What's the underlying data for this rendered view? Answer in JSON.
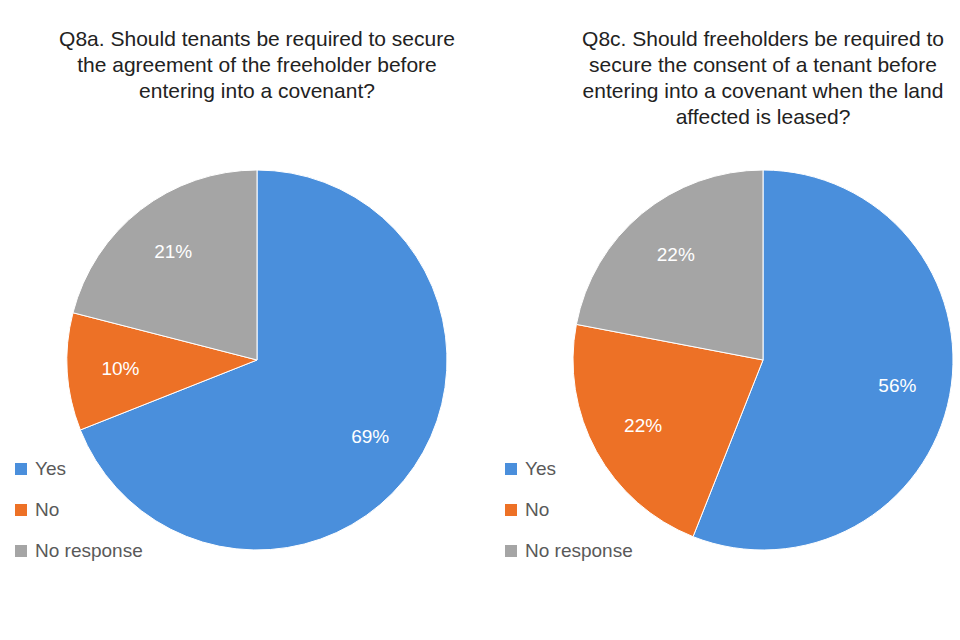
{
  "chart_data": [
    {
      "type": "pie",
      "title": "Q8a. Should tenants be required to secure the agreement of the freeholder before entering into a covenant?",
      "categories": [
        "Yes",
        "No",
        "No response"
      ],
      "values": [
        69,
        10,
        21
      ],
      "value_labels": [
        "69%",
        "10%",
        "21%"
      ],
      "colors": [
        "#4a8fdc",
        "#ed7126",
        "#a5a5a5"
      ],
      "data_labels": true,
      "legend": "bottom-left"
    },
    {
      "type": "pie",
      "title": "Q8c. Should freeholders be required to secure the consent of a tenant before entering into a covenant when the land affected is leased?",
      "categories": [
        "Yes",
        "No",
        "No response"
      ],
      "values": [
        56,
        22,
        22
      ],
      "value_labels": [
        "56%",
        "22%",
        "22%"
      ],
      "colors": [
        "#4a8fdc",
        "#ed7126",
        "#a5a5a5"
      ],
      "data_labels": true,
      "legend": "bottom-left"
    }
  ]
}
